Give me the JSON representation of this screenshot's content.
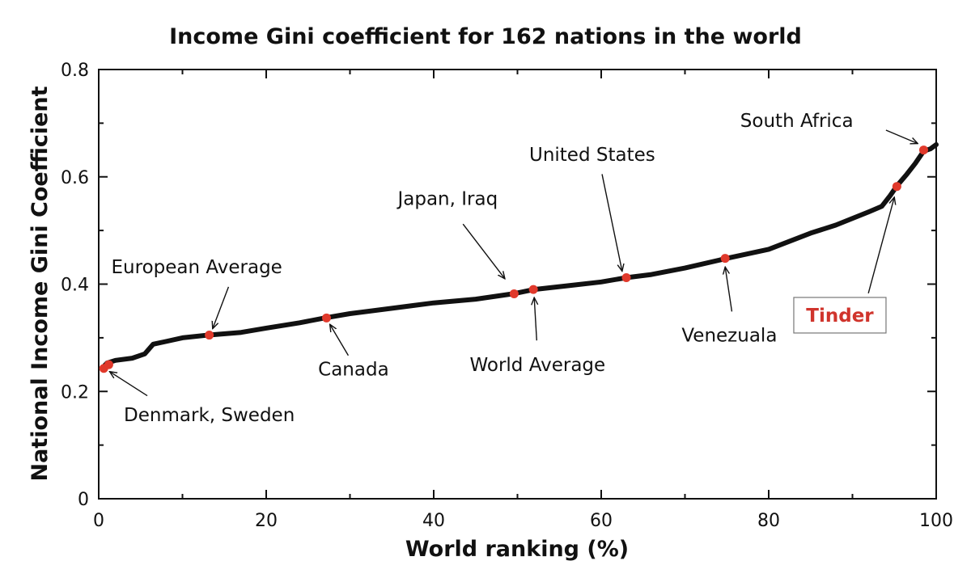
{
  "chart_data": {
    "type": "line",
    "title": "Income Gini coefficient for 162 nations in the world",
    "xlabel": "World ranking (%)",
    "ylabel": "National Income Gini Coefficient",
    "xlim": [
      0,
      100
    ],
    "ylim": [
      0,
      0.8
    ],
    "x_ticks": [
      0,
      20,
      40,
      60,
      80,
      100
    ],
    "y_ticks": [
      0,
      0.2,
      0.4,
      0.6,
      0.8
    ],
    "x_tick_labels": [
      "0",
      "20",
      "40",
      "60",
      "80",
      "100"
    ],
    "y_tick_labels": [
      "0",
      "0.2",
      "0.4",
      "0.6",
      "0.8"
    ],
    "grid": false,
    "line_color": "#111111",
    "marker_color": "#e0392b",
    "highlight_color": "#d0342c",
    "curve": [
      {
        "x": 0.5,
        "y": 0.245
      },
      {
        "x": 1,
        "y": 0.253
      },
      {
        "x": 2,
        "y": 0.258
      },
      {
        "x": 4,
        "y": 0.262
      },
      {
        "x": 5.5,
        "y": 0.27
      },
      {
        "x": 6.5,
        "y": 0.288
      },
      {
        "x": 8,
        "y": 0.293
      },
      {
        "x": 10,
        "y": 0.3
      },
      {
        "x": 13,
        "y": 0.305
      },
      {
        "x": 17,
        "y": 0.31
      },
      {
        "x": 20,
        "y": 0.318
      },
      {
        "x": 24,
        "y": 0.328
      },
      {
        "x": 27,
        "y": 0.337
      },
      {
        "x": 30,
        "y": 0.345
      },
      {
        "x": 35,
        "y": 0.355
      },
      {
        "x": 40,
        "y": 0.365
      },
      {
        "x": 45,
        "y": 0.372
      },
      {
        "x": 49.5,
        "y": 0.382
      },
      {
        "x": 52,
        "y": 0.39
      },
      {
        "x": 56,
        "y": 0.397
      },
      {
        "x": 60,
        "y": 0.404
      },
      {
        "x": 63,
        "y": 0.412
      },
      {
        "x": 66,
        "y": 0.418
      },
      {
        "x": 70,
        "y": 0.43
      },
      {
        "x": 75,
        "y": 0.448
      },
      {
        "x": 80,
        "y": 0.465
      },
      {
        "x": 85,
        "y": 0.495
      },
      {
        "x": 88,
        "y": 0.51
      },
      {
        "x": 92,
        "y": 0.535
      },
      {
        "x": 93.5,
        "y": 0.545
      },
      {
        "x": 94.5,
        "y": 0.565
      },
      {
        "x": 95.3,
        "y": 0.583
      },
      {
        "x": 96.5,
        "y": 0.605
      },
      {
        "x": 97.5,
        "y": 0.625
      },
      {
        "x": 98.5,
        "y": 0.648
      },
      {
        "x": 99.3,
        "y": 0.652
      },
      {
        "x": 100,
        "y": 0.66
      }
    ],
    "points": [
      {
        "x": 0.6,
        "y": 0.243
      },
      {
        "x": 1.2,
        "y": 0.25
      },
      {
        "x": 13.2,
        "y": 0.305
      },
      {
        "x": 27.2,
        "y": 0.337
      },
      {
        "x": 49.6,
        "y": 0.382
      },
      {
        "x": 51.9,
        "y": 0.39
      },
      {
        "x": 63.0,
        "y": 0.412
      },
      {
        "x": 74.8,
        "y": 0.448
      },
      {
        "x": 95.3,
        "y": 0.582
      },
      {
        "x": 98.5,
        "y": 0.65
      }
    ],
    "annotations": [
      {
        "text": "Denmark, Sweden",
        "x": 3,
        "y": 0.145,
        "anchor": "start",
        "highlight": false,
        "arrow_from": [
          5.8,
          0.192
        ],
        "arrow_to": [
          1.3,
          0.237
        ]
      },
      {
        "text": "European Average",
        "x": 1.5,
        "y": 0.42,
        "anchor": "start",
        "highlight": false,
        "arrow_from": [
          15.5,
          0.395
        ],
        "arrow_to": [
          13.6,
          0.317
        ]
      },
      {
        "text": "Canada",
        "x": 26.2,
        "y": 0.23,
        "anchor": "start",
        "highlight": false,
        "arrow_from": [
          29.8,
          0.267
        ],
        "arrow_to": [
          27.6,
          0.325
        ]
      },
      {
        "text": "Japan, Iraq",
        "x": 35.7,
        "y": 0.548,
        "anchor": "start",
        "highlight": false,
        "arrow_from": [
          43.5,
          0.512
        ],
        "arrow_to": [
          48.5,
          0.41
        ]
      },
      {
        "text": "World Average",
        "x": 44.3,
        "y": 0.238,
        "anchor": "start",
        "highlight": false,
        "arrow_from": [
          52.3,
          0.295
        ],
        "arrow_to": [
          52.0,
          0.375
        ]
      },
      {
        "text": "United States",
        "x": 51.4,
        "y": 0.63,
        "anchor": "start",
        "highlight": false,
        "arrow_from": [
          60.1,
          0.605
        ],
        "arrow_to": [
          62.5,
          0.424
        ]
      },
      {
        "text": "Venezuala",
        "x": 69.6,
        "y": 0.293,
        "anchor": "start",
        "highlight": false,
        "arrow_from": [
          75.6,
          0.349
        ],
        "arrow_to": [
          74.8,
          0.432
        ]
      },
      {
        "text": "Tinder",
        "x": 88.5,
        "y": 0.33,
        "anchor": "middle",
        "highlight": true,
        "arrow_from": [
          91.9,
          0.383
        ],
        "arrow_to": [
          95.0,
          0.562
        ]
      },
      {
        "text": "South Africa",
        "x": 76.6,
        "y": 0.693,
        "anchor": "start",
        "highlight": false,
        "arrow_from": [
          94.0,
          0.687
        ],
        "arrow_to": [
          97.8,
          0.662
        ]
      }
    ]
  }
}
